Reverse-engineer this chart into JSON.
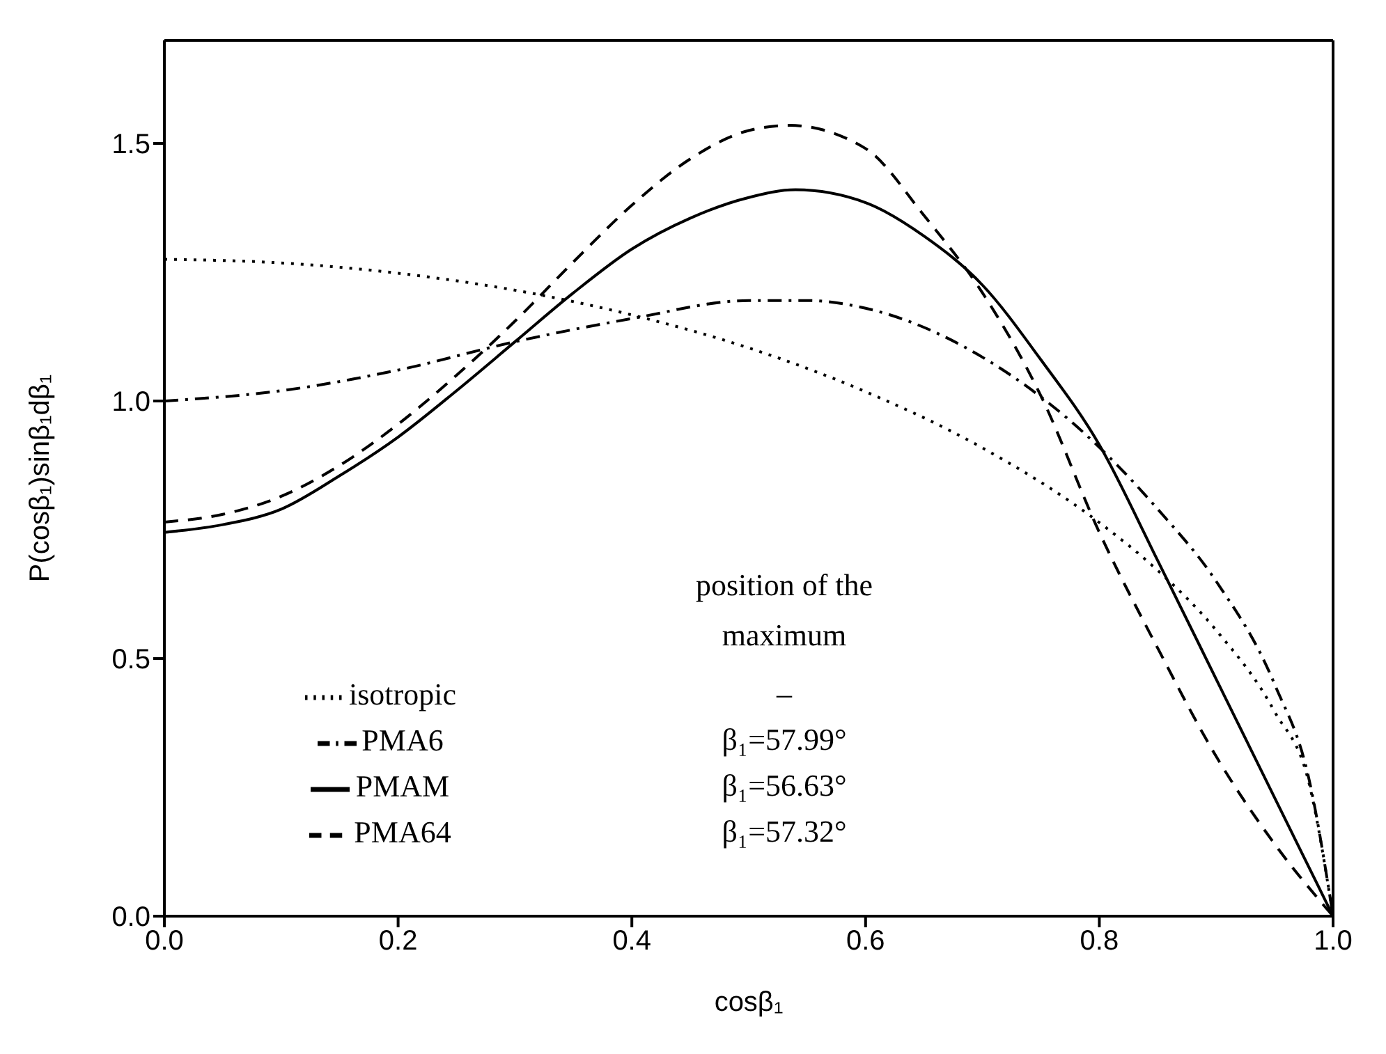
{
  "chart_data": {
    "type": "line",
    "xlabel": "cosβ₁",
    "ylabel": "P(cosβ₁)sinβ₁dβ₁",
    "xlim": [
      0,
      1
    ],
    "ylim": [
      0,
      1.7
    ],
    "xticks": [
      {
        "value": 0,
        "label": "0.0"
      },
      0.2,
      0.4,
      0.6,
      0.8,
      {
        "value": 1,
        "label": "1.0"
      }
    ],
    "yticks": [
      {
        "value": 0,
        "label": "0.0"
      },
      0.5,
      {
        "value": 1,
        "label": "1.0"
      },
      1.5
    ],
    "grid": false,
    "legend": "bottom left",
    "marker": "none",
    "annotations": [
      "position of the maximum",
      "–",
      "β₁=57.99°",
      "β₁=56.63°",
      "β₁=57.32°"
    ],
    "series": [
      {
        "name": "isotropic",
        "color": "#000000",
        "line_style": "dotted",
        "x": [
          0,
          0.1,
          0.2,
          0.3,
          0.4,
          0.5,
          0.6,
          0.7,
          0.8,
          0.85,
          0.9,
          0.95,
          0.98,
          1.0
        ],
        "values": [
          1.275,
          1.268,
          1.248,
          1.215,
          1.167,
          1.103,
          1.018,
          0.909,
          0.764,
          0.671,
          0.555,
          0.397,
          0.253,
          0
        ]
      },
      {
        "name": "PMA6",
        "color": "#000000",
        "line_style": "dashdot",
        "x": [
          0,
          0.1,
          0.2,
          0.3,
          0.4,
          0.5,
          0.55,
          0.6,
          0.7,
          0.8,
          0.85,
          0.9,
          0.95,
          0.98,
          1.0
        ],
        "values": [
          1.0,
          1.02,
          1.06,
          1.115,
          1.16,
          1.195,
          1.195,
          1.18,
          1.085,
          0.91,
          0.79,
          0.65,
          0.45,
          0.26,
          0
        ]
      },
      {
        "name": "PMAM",
        "color": "#000000",
        "line_style": "solid",
        "x": [
          0,
          0.05,
          0.1,
          0.15,
          0.2,
          0.25,
          0.3,
          0.35,
          0.4,
          0.45,
          0.5,
          0.54,
          0.6,
          0.65,
          0.7,
          0.75,
          0.8,
          0.85,
          0.9,
          0.95,
          1.0
        ],
        "values": [
          0.745,
          0.76,
          0.79,
          0.855,
          0.93,
          1.02,
          1.115,
          1.21,
          1.295,
          1.355,
          1.395,
          1.41,
          1.385,
          1.32,
          1.225,
          1.08,
          0.915,
          0.69,
          0.46,
          0.23,
          0
        ]
      },
      {
        "name": "PMA64",
        "color": "#000000",
        "line_style": "dashed",
        "x": [
          0,
          0.05,
          0.1,
          0.15,
          0.2,
          0.25,
          0.3,
          0.35,
          0.4,
          0.45,
          0.5,
          0.535,
          0.6,
          0.65,
          0.7,
          0.75,
          0.8,
          0.85,
          0.9,
          0.95,
          1.0
        ],
        "values": [
          0.765,
          0.78,
          0.815,
          0.875,
          0.955,
          1.05,
          1.155,
          1.27,
          1.38,
          1.47,
          1.525,
          1.535,
          1.49,
          1.36,
          1.21,
          1.01,
          0.745,
          0.52,
          0.31,
          0.14,
          0
        ]
      }
    ]
  }
}
